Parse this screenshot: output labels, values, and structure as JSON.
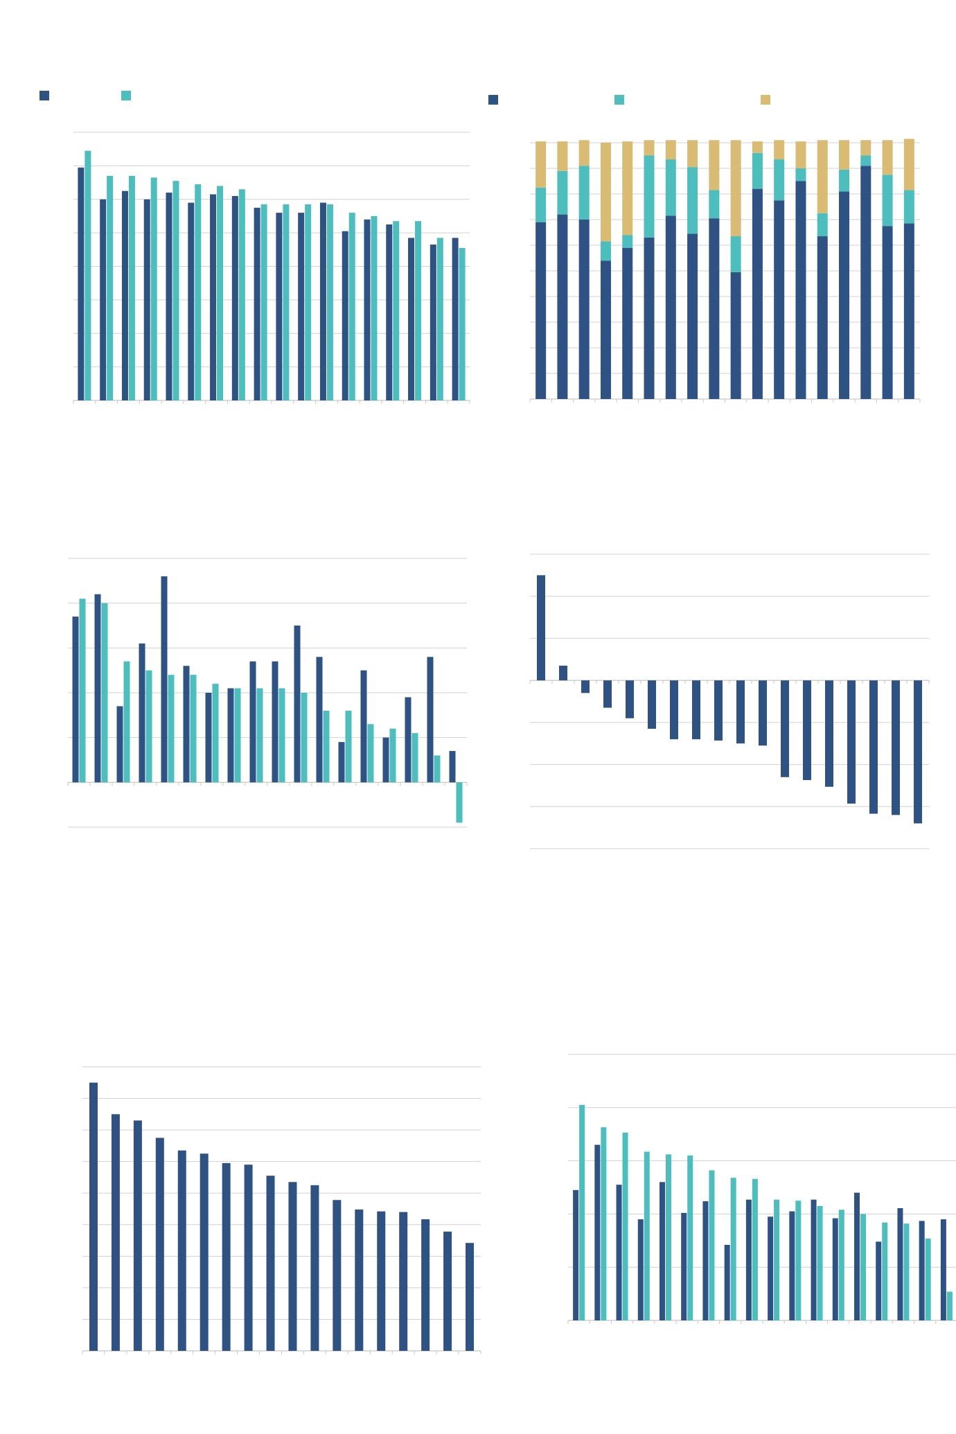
{
  "colors": {
    "navy": "#2E5283",
    "teal": "#4CBEBE",
    "gold": "#D9BB74",
    "grid": "#D0D0D0",
    "axis": "#C8C8C8"
  },
  "chart_data": [
    {
      "type": "bar",
      "title": "",
      "series": [
        {
          "color": "#2E5283",
          "values": [
            69.5,
            60,
            62.5,
            60,
            62,
            59,
            61.5,
            61,
            57.5,
            56,
            56,
            59,
            50.5,
            54,
            52.5,
            48.5,
            46.5,
            48.5
          ]
        },
        {
          "color": "#4CBEBE",
          "values": [
            74.5,
            67,
            67,
            66.5,
            65.5,
            64.5,
            64,
            63,
            58.5,
            58.5,
            58.5,
            58.5,
            56,
            55,
            53.5,
            53.5,
            48.5,
            45.5
          ]
        }
      ],
      "ylim": [
        0,
        80
      ],
      "grid": true,
      "legend": "top-left"
    },
    {
      "type": "bar",
      "stacked": true,
      "series": [
        {
          "color": "#2E5283",
          "values": [
            69,
            72,
            70,
            54,
            59,
            63,
            71.5,
            64.5,
            70.5,
            49.5,
            82,
            77.5,
            85,
            63.5,
            81,
            91,
            67.5,
            68.5
          ]
        },
        {
          "color": "#4CBEBE",
          "values": [
            13.5,
            17,
            21,
            7.5,
            5,
            32,
            22,
            26,
            11,
            14,
            14,
            16,
            5,
            9,
            8.5,
            4,
            20,
            13
          ]
        },
        {
          "color": "#D9BB74",
          "values": [
            18,
            11.5,
            10,
            38.5,
            36.5,
            6,
            7.5,
            10.5,
            19.5,
            37.5,
            4.5,
            7.5,
            10.5,
            28.5,
            11.5,
            6,
            13.5,
            20
          ]
        }
      ],
      "ylim": [
        0,
        100
      ],
      "grid": true,
      "legend": "top-left"
    },
    {
      "type": "bar",
      "series": [
        {
          "color": "#2E5283",
          "values": [
            3.7,
            4.2,
            1.7,
            3.1,
            4.6,
            2.6,
            2.0,
            2.1,
            2.7,
            2.7,
            3.5,
            2.8,
            0.9,
            2.5,
            1.0,
            1.9,
            2.8,
            0.7
          ]
        },
        {
          "color": "#4CBEBE",
          "values": [
            4.1,
            4.0,
            2.7,
            2.5,
            2.4,
            2.4,
            2.2,
            2.1,
            2.1,
            2.1,
            2.0,
            1.6,
            1.6,
            1.3,
            1.2,
            1.1,
            0.6,
            -0.9
          ]
        }
      ],
      "ylim": [
        -1,
        5
      ],
      "grid": true
    },
    {
      "type": "bar",
      "series": [
        {
          "color": "#2E5283",
          "values": [
            2.5,
            0.35,
            -0.3,
            -0.65,
            -0.9,
            -1.15,
            -1.4,
            -1.4,
            -1.43,
            -1.5,
            -1.55,
            -2.3,
            -2.37,
            -2.53,
            -2.93,
            -3.17,
            -3.2,
            -3.4
          ]
        }
      ],
      "ylim": [
        -4,
        3
      ],
      "grid": true
    },
    {
      "type": "bar",
      "series": [
        {
          "color": "#2E5283",
          "values": [
            8.5,
            7.5,
            7.3,
            6.75,
            6.35,
            6.25,
            5.95,
            5.9,
            5.55,
            5.35,
            5.25,
            4.78,
            4.48,
            4.42,
            4.4,
            4.17,
            3.78,
            3.42
          ]
        }
      ],
      "ylim": [
        0,
        9
      ],
      "grid": true
    },
    {
      "type": "bar",
      "series": [
        {
          "color": "#2E5283",
          "values": [
            2.45,
            3.3,
            2.55,
            1.9,
            2.6,
            2.02,
            2.24,
            1.42,
            2.27,
            1.95,
            2.05,
            2.27,
            1.92,
            2.4,
            1.48,
            2.11,
            1.87,
            1.9
          ]
        },
        {
          "color": "#4CBEBE",
          "values": [
            4.05,
            3.63,
            3.53,
            3.17,
            3.12,
            3.1,
            2.82,
            2.68,
            2.66,
            2.27,
            2.25,
            2.15,
            2.08,
            2.0,
            1.84,
            1.82,
            1.54,
            0.54
          ]
        }
      ],
      "ylim": [
        0,
        5
      ],
      "grid": true
    }
  ]
}
